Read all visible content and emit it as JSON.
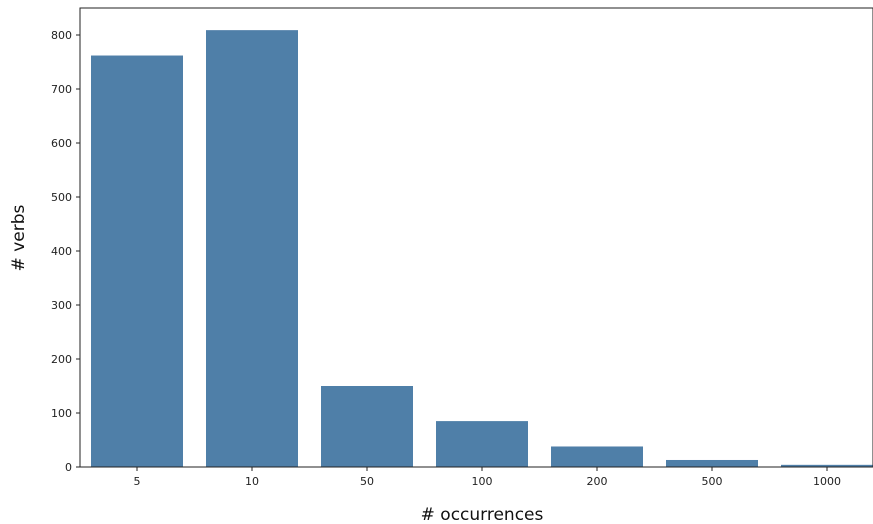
{
  "chart_data": {
    "type": "bar",
    "categories": [
      "5",
      "10",
      "50",
      "100",
      "200",
      "500",
      "1000"
    ],
    "values": [
      762,
      809,
      150,
      85,
      38,
      13,
      4
    ],
    "title": "",
    "xlabel": "# occurrences",
    "ylabel": "# verbs",
    "ylim": [
      0,
      850
    ],
    "yticks": [
      0,
      100,
      200,
      300,
      400,
      500,
      600,
      700,
      800
    ],
    "bar_color": "#4f7fa8",
    "grid": false,
    "legend": "none"
  }
}
